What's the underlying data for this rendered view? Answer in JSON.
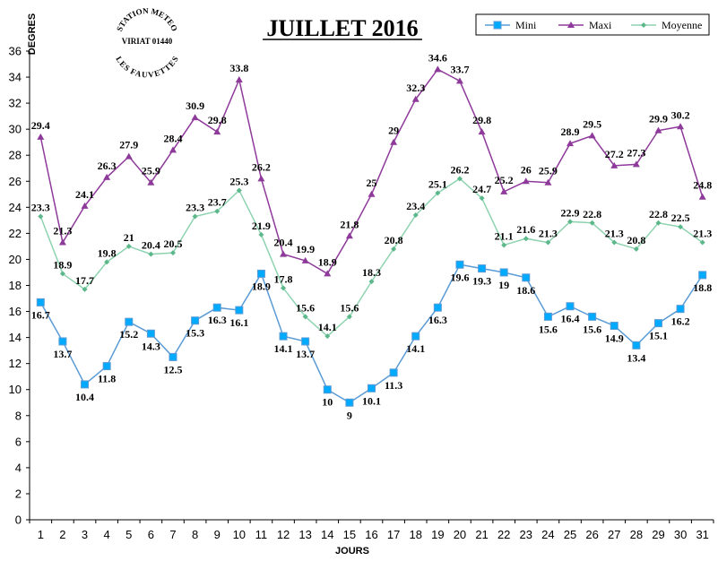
{
  "chart_data": {
    "type": "line",
    "title": "JUILLET 2016",
    "xlabel": "JOURS",
    "ylabel": "DEGRES",
    "ylim": [
      0,
      36
    ],
    "yticks": [
      0,
      2,
      4,
      6,
      8,
      10,
      12,
      14,
      16,
      18,
      20,
      22,
      24,
      26,
      28,
      30,
      32,
      34,
      36
    ],
    "categories": [
      "1",
      "2",
      "3",
      "4",
      "5",
      "6",
      "7",
      "8",
      "9",
      "10",
      "11",
      "12",
      "13",
      "14",
      "15",
      "16",
      "17",
      "18",
      "19",
      "20",
      "21",
      "22",
      "23",
      "24",
      "25",
      "26",
      "27",
      "28",
      "29",
      "30",
      "31"
    ],
    "series": [
      {
        "name": "Mini",
        "color": "#5b9bd5",
        "marker": "square",
        "values": [
          16.7,
          13.7,
          10.4,
          11.8,
          15.2,
          14.3,
          12.5,
          15.3,
          16.3,
          16.1,
          18.9,
          14.1,
          13.7,
          10,
          9,
          10.1,
          11.3,
          14.1,
          16.3,
          19.6,
          19.3,
          19,
          18.6,
          15.6,
          16.4,
          15.6,
          14.9,
          13.4,
          15.1,
          16.2,
          18.8
        ]
      },
      {
        "name": "Maxi",
        "color": "#8e3a9a",
        "marker": "triangle",
        "values": [
          29.4,
          21.3,
          24.1,
          26.3,
          27.9,
          25.9,
          28.4,
          30.9,
          29.8,
          33.8,
          26.2,
          20.4,
          19.9,
          18.9,
          21.8,
          25,
          29,
          32.3,
          34.6,
          33.7,
          29.8,
          25.2,
          26,
          25.9,
          28.9,
          29.5,
          27.2,
          27.3,
          29.9,
          30.2,
          24.8
        ]
      },
      {
        "name": "Moyenne",
        "color": "#8ed3b0",
        "marker": "diamond",
        "values": [
          23.3,
          18.9,
          17.7,
          19.8,
          21,
          20.4,
          20.5,
          23.3,
          23.7,
          25.3,
          21.9,
          17.8,
          15.6,
          14.1,
          15.6,
          18.3,
          20.8,
          23.4,
          25.1,
          26.2,
          24.7,
          21.1,
          21.6,
          21.3,
          22.9,
          22.8,
          21.3,
          20.8,
          22.8,
          22.5,
          21.3
        ]
      }
    ],
    "legend_position": "top-right",
    "grid": false
  },
  "stamp": {
    "top": "STATION METEO",
    "middle": "VIRIAT 01440",
    "bottom": "LES FAUVETTES"
  }
}
